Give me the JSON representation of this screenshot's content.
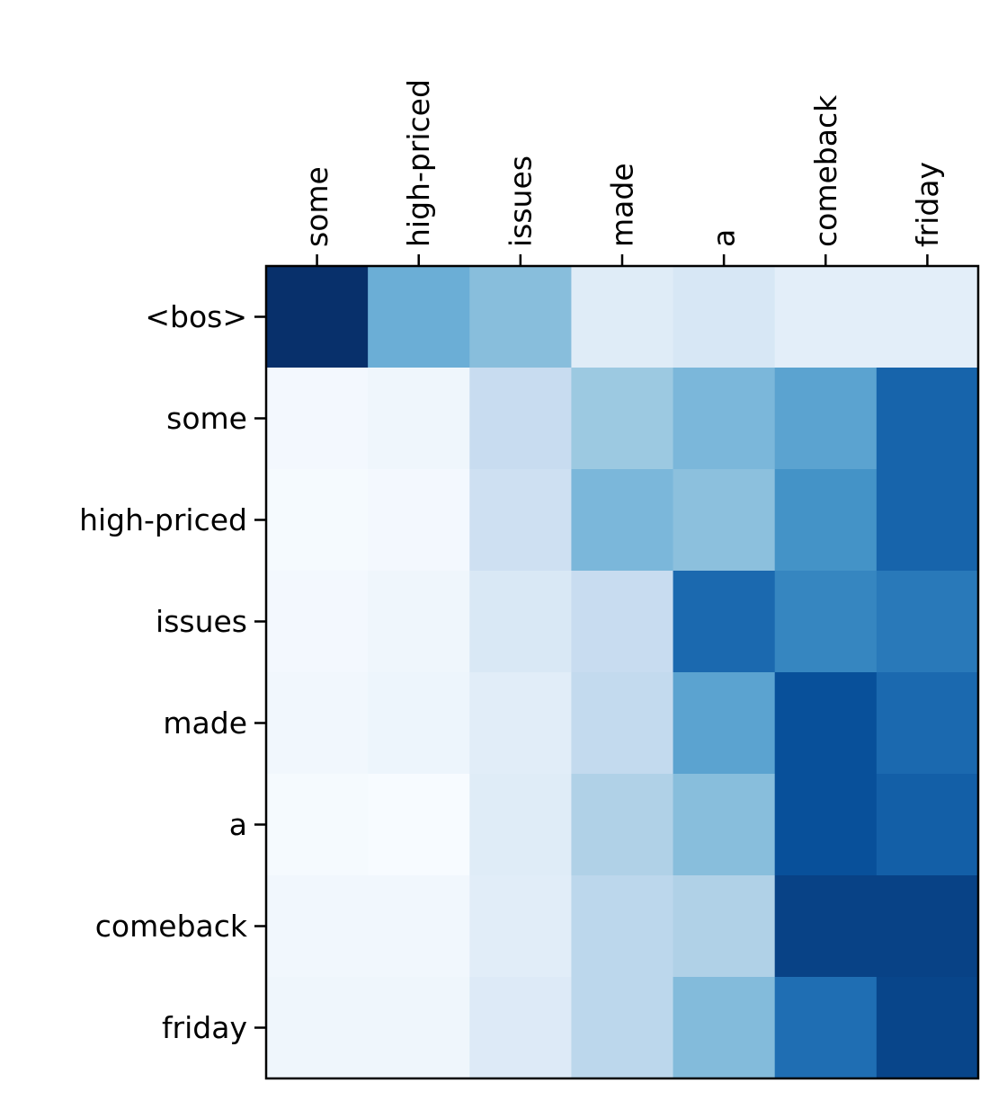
{
  "chart_data": {
    "type": "heatmap",
    "title": "",
    "xlabel": "",
    "ylabel": "",
    "x_categories": [
      "some",
      "high-priced",
      "issues",
      "made",
      "a",
      "comeback",
      "friday"
    ],
    "y_categories": [
      "<bos>",
      "some",
      "high-priced",
      "issues",
      "made",
      "a",
      "comeback",
      "friday"
    ],
    "x_tick_position": "top",
    "colormap": "Blues",
    "value_range": [
      0,
      1
    ],
    "values": [
      [
        1.0,
        0.5,
        0.43,
        0.12,
        0.16,
        0.1,
        0.1
      ],
      [
        0.02,
        0.04,
        0.24,
        0.38,
        0.46,
        0.55,
        0.8
      ],
      [
        0.01,
        0.02,
        0.21,
        0.46,
        0.42,
        0.62,
        0.8
      ],
      [
        0.02,
        0.04,
        0.15,
        0.24,
        0.78,
        0.67,
        0.72
      ],
      [
        0.03,
        0.05,
        0.11,
        0.26,
        0.55,
        0.88,
        0.78
      ],
      [
        0.01,
        0.0,
        0.12,
        0.32,
        0.43,
        0.88,
        0.82
      ],
      [
        0.03,
        0.03,
        0.11,
        0.28,
        0.32,
        0.93,
        0.93
      ],
      [
        0.04,
        0.04,
        0.13,
        0.28,
        0.44,
        0.76,
        0.92
      ]
    ],
    "grid": false,
    "legend": "none"
  }
}
